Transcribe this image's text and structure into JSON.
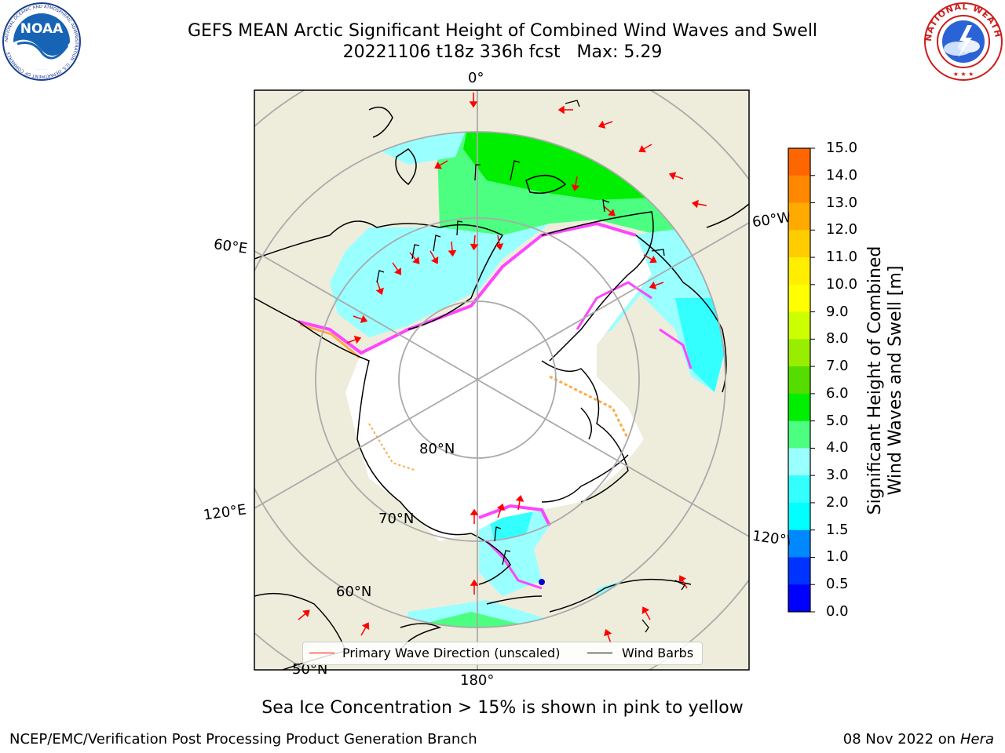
{
  "title": {
    "line1": "GEFS MEAN Arctic Significant Height of Combined Wind Waves and Swell",
    "line2": "20221106 t18z 336h fcst   Max: 5.29"
  },
  "logos": {
    "left": {
      "name": "NOAA",
      "text": "NOAA",
      "ring_text": "NATIONAL OCEANIC AND ATMOSPHERIC ADMINISTRATION · U.S. DEPARTMENT OF COMMERCE"
    },
    "right": {
      "name": "National Weather Service",
      "ring_text": "NATIONAL WEATHER SERVICE"
    }
  },
  "map": {
    "projection": "north-polar-stereographic",
    "center": "North Pole",
    "longitude_labels": [
      "0°",
      "60°E",
      "120°E",
      "180°",
      "120°W",
      "60°W"
    ],
    "latitude_labels": [
      "80°N",
      "70°N",
      "60°N",
      "50°N"
    ],
    "ocean_fill_color": "#eeeddc",
    "land_color": "#eeeddc",
    "ice_color": "#ffffff",
    "wave_colors": {
      "lt_1_5": "#00ffff",
      "1_5_to_2": "#33ffff",
      "2_to_3": "#99ffff",
      "3_to_4": "#4dff80",
      "4_to_5": "#00ee00"
    }
  },
  "colorbar": {
    "title_line1": "Significant Height of Combined",
    "title_line2": "Wind Waves and Swell [m]",
    "ticks": [
      "15.0",
      "14.0",
      "13.0",
      "12.0",
      "11.0",
      "10.0",
      "9.0",
      "8.0",
      "7.0",
      "6.0",
      "5.0",
      "4.0",
      "3.0",
      "2.0",
      "1.5",
      "1.0",
      "0.5",
      "0.0"
    ],
    "colors": [
      "#ff0000",
      "#ff3300",
      "#ff6600",
      "#ff8800",
      "#ffaa00",
      "#ffcc00",
      "#ffee00",
      "#ffff00",
      "#ccff00",
      "#99ee00",
      "#55dd00",
      "#00ee00",
      "#4dff80",
      "#99ffff",
      "#33ffff",
      "#00ffff",
      "#0088ff",
      "#0033ff",
      "#0000ff"
    ]
  },
  "legend": {
    "wave_label": "Primary Wave Direction (unscaled)",
    "wave_color": "#ff0000",
    "barb_label": "Wind Barbs",
    "barb_color": "#000000"
  },
  "footer": {
    "note": "Sea Ice Concentration > 15% is shown in pink to yellow",
    "credit": "NCEP/EMC/Verification Post Processing Product Generation Branch",
    "date": "08 Nov 2022 on",
    "host": "Hera"
  }
}
